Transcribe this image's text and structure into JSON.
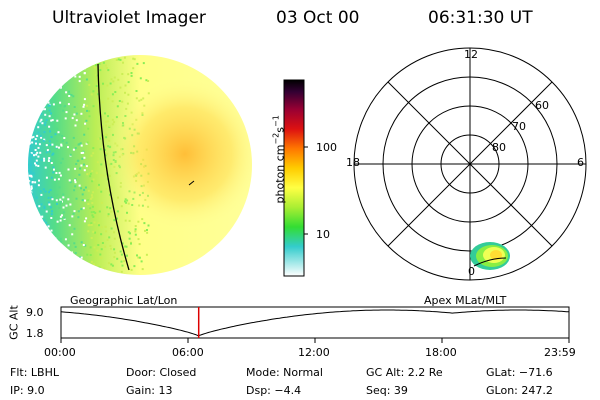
{
  "header": {
    "title": "Ultraviolet Imager",
    "date": "03 Oct 00",
    "time": "06:31:30 UT"
  },
  "colorbar": {
    "unit_label": "photon cm",
    "unit_exp1": "−2",
    "unit_s": "s",
    "unit_exp2": "−1",
    "ticks": [
      {
        "value": "100"
      },
      {
        "value": "10"
      }
    ]
  },
  "polar_plot": {
    "mlt_labels": {
      "top": "12",
      "left": "18",
      "right": "6",
      "bottom": "0"
    },
    "lat_labels": [
      "60",
      "70",
      "80"
    ]
  },
  "panel_labels": {
    "geographic": "Geographic Lat/Lon",
    "apex": "Apex MLat/MLT"
  },
  "altitude_plot": {
    "ylabel": "GC Alt",
    "yticks": [
      "9.0",
      "1.8"
    ],
    "xticks": [
      "00:00",
      "06:00",
      "12:00",
      "18:00",
      "23:59"
    ],
    "current_time_fraction": 0.271
  },
  "info": {
    "row1": {
      "flt": "Flt: LBHL",
      "door": "Door: Closed",
      "mode": "Mode: Normal",
      "gcalt": "GC Alt: 2.2 Re",
      "glat": "GLat: −71.6"
    },
    "row2": {
      "ip": "IP: 9.0",
      "gain": "Gain: 13",
      "dsp": "Dsp: −4.4",
      "seq": "Seq: 39",
      "glon": "GLon: 247.2"
    }
  },
  "colors": {
    "disk_base": "#ffff99",
    "disk_warm": "#ffcc33",
    "disk_green": "#66dd66",
    "disk_cyan": "#33cccc"
  }
}
